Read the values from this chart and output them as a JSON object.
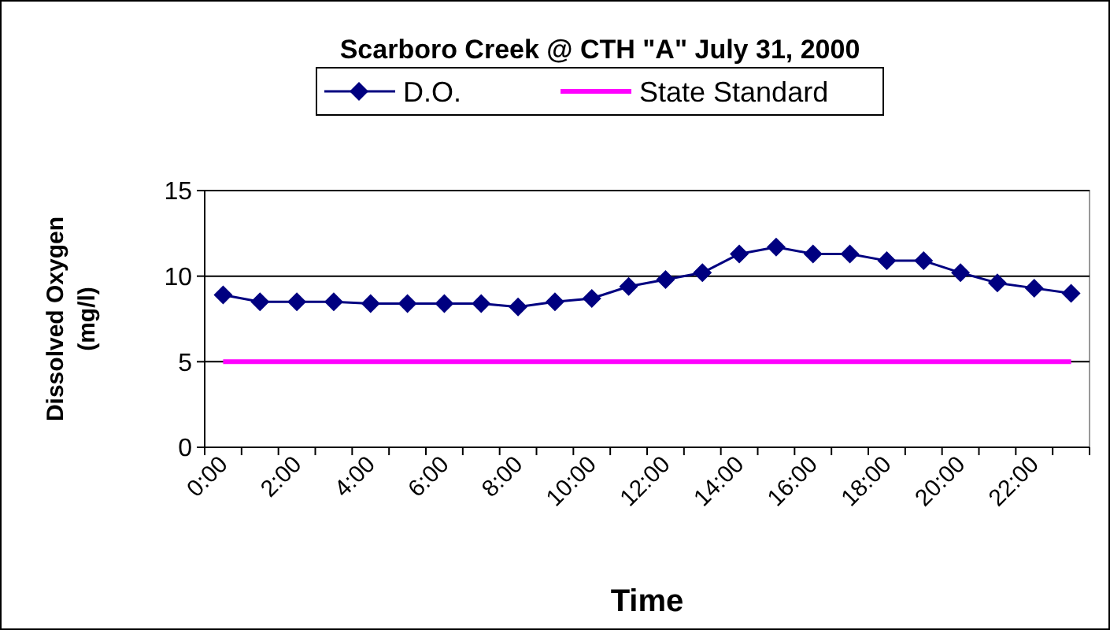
{
  "chart_data": {
    "type": "line",
    "title": "Scarboro Creek @ CTH \"A\" July 31, 2000",
    "xlabel": "Time",
    "ylabel": "Dissolved Oxygen (mg/l)",
    "categories": [
      "0:00",
      null,
      "2:00",
      null,
      "4:00",
      null,
      "6:00",
      null,
      "8:00",
      null,
      "10:00",
      null,
      "12:00",
      null,
      "14:00",
      null,
      "16:00",
      null,
      "18:00",
      null,
      "20:00",
      null,
      "22:00",
      null
    ],
    "series": [
      {
        "name": "D.O.",
        "color": "#000080",
        "marker": "diamond",
        "values": [
          8.9,
          8.5,
          8.5,
          8.5,
          8.4,
          8.4,
          8.4,
          8.4,
          8.2,
          8.5,
          8.7,
          9.4,
          9.8,
          10.2,
          11.3,
          11.7,
          11.3,
          11.3,
          10.9,
          10.9,
          10.2,
          9.6,
          9.3,
          9.0
        ]
      },
      {
        "name": "State Standard",
        "color": "#ff00ff",
        "marker": "none",
        "values": [
          5,
          5,
          5,
          5,
          5,
          5,
          5,
          5,
          5,
          5,
          5,
          5,
          5,
          5,
          5,
          5,
          5,
          5,
          5,
          5,
          5,
          5,
          5,
          5
        ]
      }
    ],
    "ylim": [
      0,
      15
    ],
    "yticks": [
      0,
      5,
      10,
      15
    ],
    "grid": "y",
    "legend": "top"
  }
}
